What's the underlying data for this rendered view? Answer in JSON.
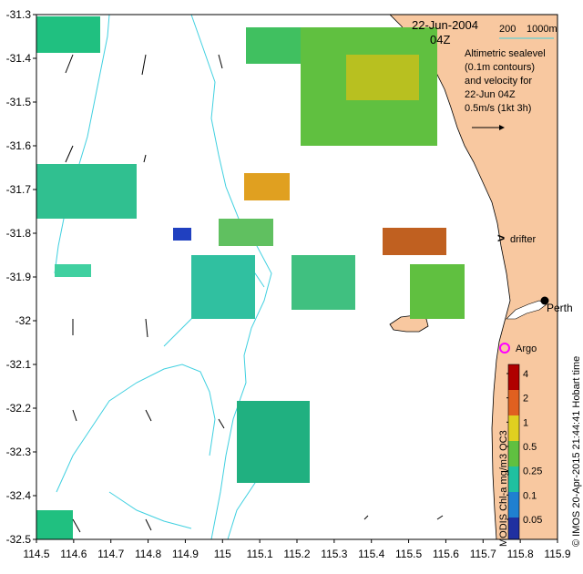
{
  "header": {
    "date": "22-Jun-2004",
    "time": "04Z"
  },
  "depth_legend": {
    "label_a": "200",
    "label_b": "1000m",
    "color": "#40d0e0"
  },
  "velocity_note": {
    "line1": "Altimetric sealevel",
    "line2": "(0.1m contours)",
    "line3": "and velocity for",
    "line4": "22-Jun 04Z",
    "line5": "0.5m/s (1kt 3h)"
  },
  "labels": {
    "drifter": "drifter",
    "argo": "Argo",
    "city": "Perth"
  },
  "credit": "© IMOS 20-Apr-2015 21:44:41 Hobart time",
  "colorbar_title": "MODIS Chl-a mg/m3 OC3",
  "colorbar_ticks": [
    "4",
    "2",
    "1",
    "0.5",
    "0.25",
    "0.1",
    "0.05"
  ],
  "lat_ticks": [
    "-31.3",
    "-31.4",
    "-31.5",
    "-31.6",
    "-31.7",
    "-31.8",
    "-31.9",
    "-32",
    "-32.1",
    "-32.2",
    "-32.3",
    "-32.4",
    "-32.5"
  ],
  "lon_ticks": [
    "114.5",
    "114.6",
    "114.7",
    "114.8",
    "114.9",
    "115",
    "115.1",
    "115.2",
    "115.3",
    "115.4",
    "115.5",
    "115.6",
    "115.7",
    "115.8",
    "115.9"
  ],
  "colors": {
    "land": "#f8c8a0",
    "ocean": "#ffffff",
    "isobath": "#40d0e0",
    "chl_low": "#2040c0",
    "chl_mid": "#20c080",
    "chl_high": "#c02000",
    "drifter_marker": "#ff00ff",
    "argo_marker": "#ff00ff"
  }
}
